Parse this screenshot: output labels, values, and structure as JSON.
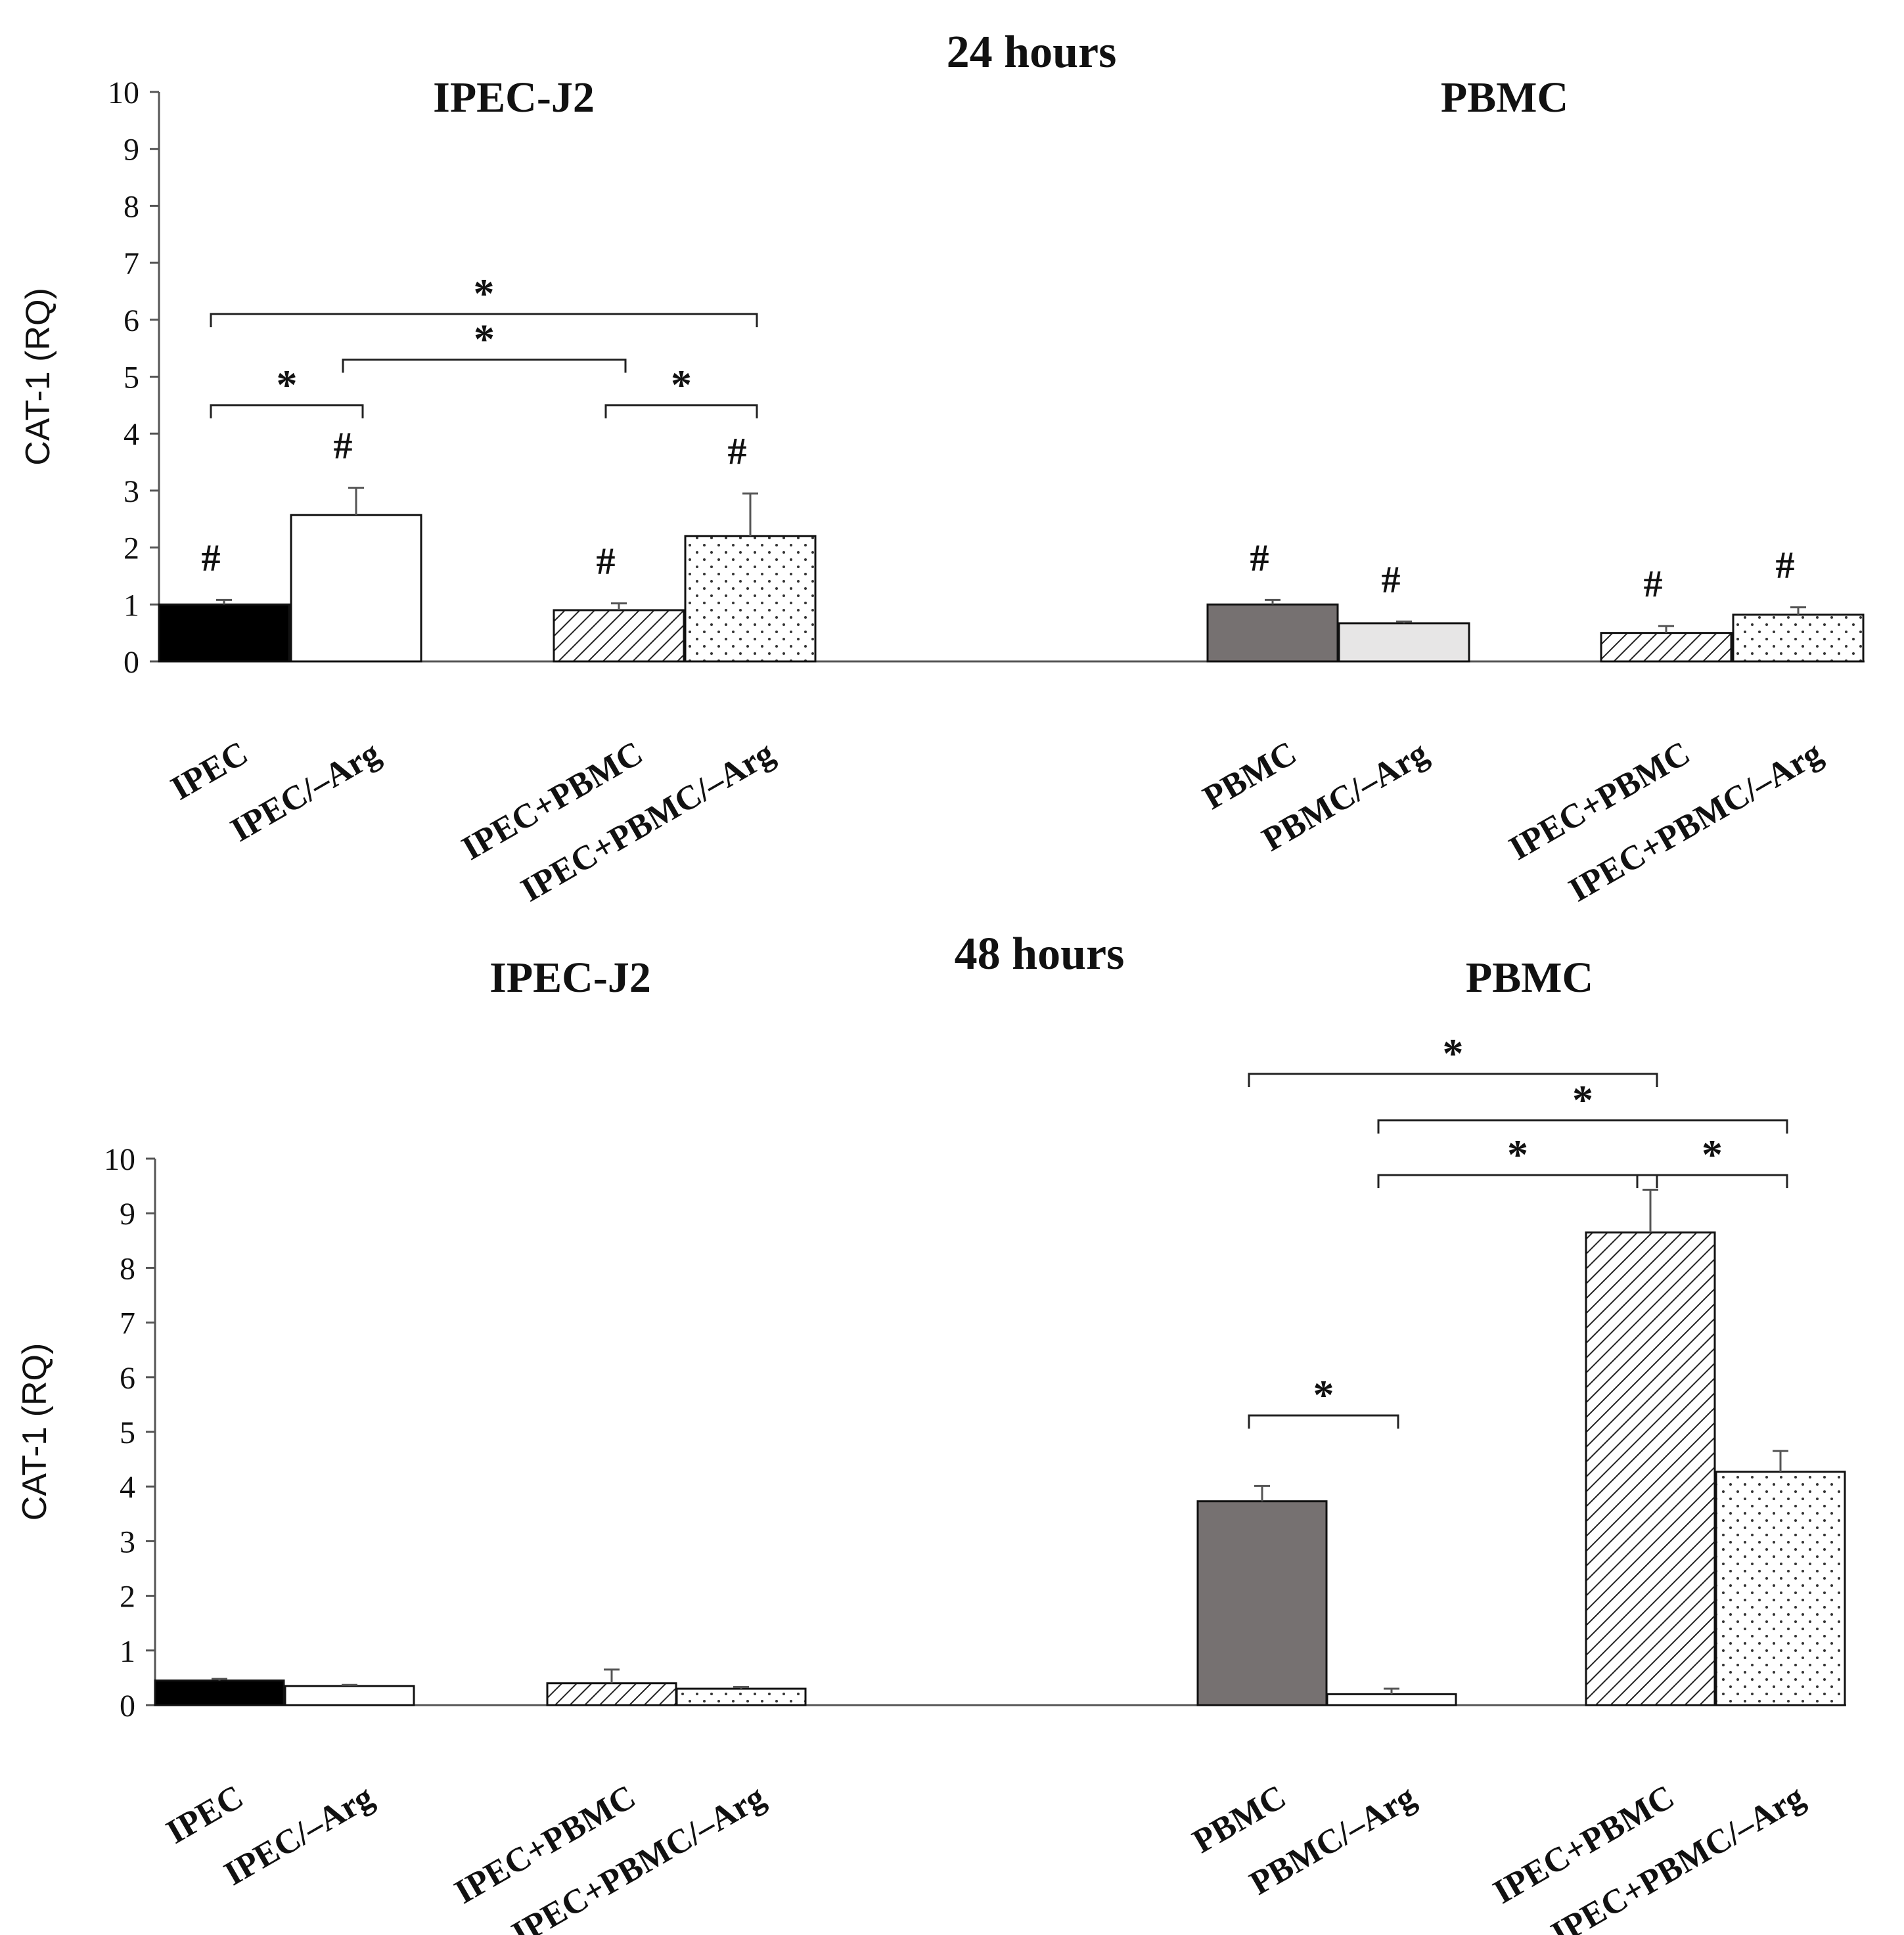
{
  "chart_data": [
    {
      "type": "bar",
      "title": "24 hours",
      "ylabel": "CAT-1 (RQ)",
      "xlabel": "",
      "ylim": [
        0,
        10
      ],
      "yticks": [
        "0",
        "1",
        "2",
        "3",
        "4",
        "5",
        "6",
        "7",
        "8",
        "9",
        "10"
      ],
      "groups": [
        {
          "title": "IPEC-J2",
          "categories": [
            "IPEC",
            "IPEC/–Arg",
            "IPEC+PBMC",
            "IPEC+PBMC/–Arg"
          ]
        },
        {
          "title": "PBMC",
          "categories": [
            "PBMC",
            "PBMC/–Arg",
            "IPEC+PBMC",
            "IPEC+PBMC/–Arg"
          ]
        }
      ],
      "bars": [
        {
          "group": 0,
          "label": "IPEC",
          "value": 1.0,
          "error": 0.08,
          "style": "black",
          "mark": "#"
        },
        {
          "group": 0,
          "label": "IPEC/–Arg",
          "value": 2.57,
          "error": 0.48,
          "style": "white",
          "mark": "#"
        },
        {
          "group": 0,
          "label": "IPEC+PBMC",
          "value": 0.9,
          "error": 0.12,
          "style": "hatch",
          "mark": "#"
        },
        {
          "group": 0,
          "label": "IPEC+PBMC/–Arg",
          "value": 2.2,
          "error": 0.75,
          "style": "dots",
          "mark": "#"
        },
        {
          "group": 1,
          "label": "PBMC",
          "value": 1.0,
          "error": 0.08,
          "style": "gray",
          "mark": "#"
        },
        {
          "group": 1,
          "label": "PBMC/–Arg",
          "value": 0.67,
          "error": 0.03,
          "style": "lightgray",
          "mark": "#"
        },
        {
          "group": 1,
          "label": "IPEC+PBMC",
          "value": 0.5,
          "error": 0.12,
          "style": "hatch",
          "mark": "#"
        },
        {
          "group": 1,
          "label": "IPEC+PBMC/–Arg",
          "value": 0.82,
          "error": 0.13,
          "style": "dots",
          "mark": "#"
        }
      ],
      "brackets": [
        {
          "from": 0,
          "to": 1,
          "level": 4.5,
          "text": "*"
        },
        {
          "from": 1,
          "to": 2,
          "level": 5.3,
          "text": "*"
        },
        {
          "from": 0,
          "to": 3,
          "level": 6.1,
          "text": "*"
        },
        {
          "from": 2,
          "to": 3,
          "level": 4.5,
          "text": "*"
        }
      ]
    },
    {
      "type": "bar",
      "title": "48 hours",
      "ylabel": "CAT-1 (RQ)",
      "xlabel": "",
      "ylim": [
        0,
        10
      ],
      "yticks": [
        "0",
        "1",
        "2",
        "3",
        "4",
        "5",
        "6",
        "7",
        "8",
        "9",
        "10"
      ],
      "groups": [
        {
          "title": "IPEC-J2",
          "categories": [
            "IPEC",
            "IPEC/–Arg",
            "IPEC+PBMC",
            "IPEC+PBMC/–Arg"
          ]
        },
        {
          "title": "PBMC",
          "categories": [
            "PBMC",
            "PBMC/–Arg",
            "IPEC+PBMC",
            "IPEC+PBMC/–Arg"
          ]
        }
      ],
      "bars": [
        {
          "group": 0,
          "label": "IPEC",
          "value": 0.45,
          "error": 0.03,
          "style": "black",
          "mark": ""
        },
        {
          "group": 0,
          "label": "IPEC/–Arg",
          "value": 0.35,
          "error": 0.02,
          "style": "white",
          "mark": ""
        },
        {
          "group": 0,
          "label": "IPEC+PBMC",
          "value": 0.4,
          "error": 0.25,
          "style": "hatch",
          "mark": ""
        },
        {
          "group": 0,
          "label": "IPEC+PBMC/–Arg",
          "value": 0.3,
          "error": 0.03,
          "style": "dots",
          "mark": ""
        },
        {
          "group": 1,
          "label": "PBMC",
          "value": 3.73,
          "error": 0.28,
          "style": "gray",
          "mark": ""
        },
        {
          "group": 1,
          "label": "PBMC/–Arg",
          "value": 0.2,
          "error": 0.1,
          "style": "white",
          "mark": ""
        },
        {
          "group": 1,
          "label": "IPEC+PBMC",
          "value": 8.65,
          "error": 0.78,
          "style": "hatch",
          "mark": ""
        },
        {
          "group": 1,
          "label": "IPEC+PBMC/–Arg",
          "value": 4.27,
          "error": 0.38,
          "style": "dots",
          "mark": ""
        }
      ],
      "brackets": [
        {
          "from": 4,
          "to": 5,
          "level": 5.3,
          "text": "*"
        },
        {
          "from": 5,
          "to": 6,
          "level": 9.7,
          "text": "*"
        },
        {
          "from": 6,
          "to": 7,
          "level": 9.7,
          "text": "*"
        },
        {
          "from": 5,
          "to": 7,
          "level": 10.7,
          "text": "*"
        },
        {
          "from": 4,
          "to": 6,
          "level": 11.55,
          "text": "*"
        }
      ]
    }
  ]
}
